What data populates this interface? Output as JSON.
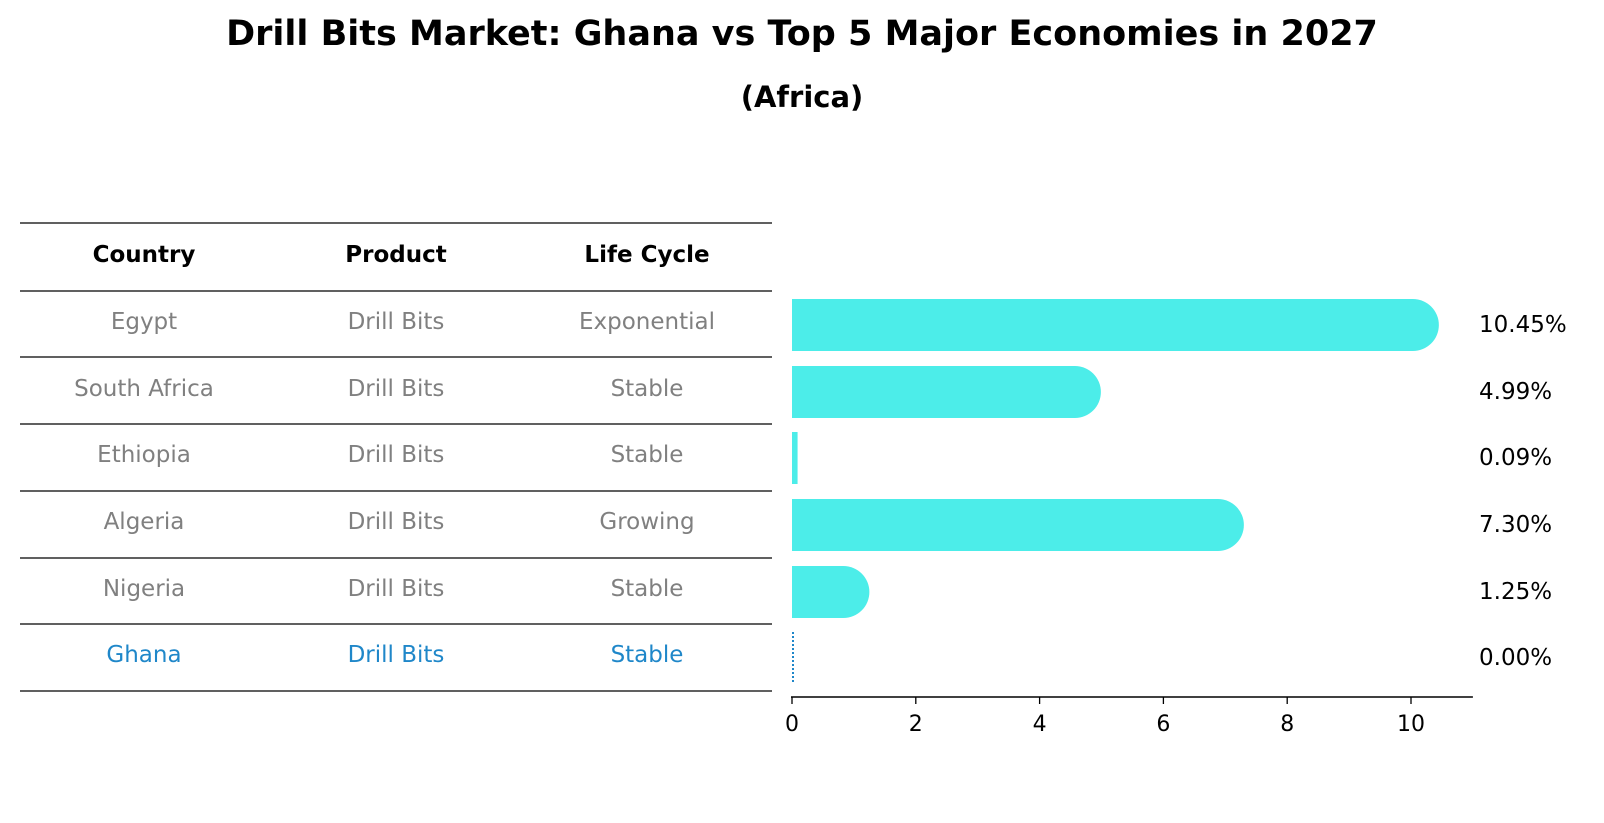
{
  "title": "Drill Bits Market: Ghana vs Top 5 Major Economies in 2027",
  "subtitle": "(Africa)",
  "table": {
    "headers": [
      "Country",
      "Product",
      "Life Cycle"
    ],
    "rows": [
      {
        "country": "Egypt",
        "product": "Drill Bits",
        "life_cycle": "Exponential",
        "highlight": false
      },
      {
        "country": "South Africa",
        "product": "Drill Bits",
        "life_cycle": "Stable",
        "highlight": false
      },
      {
        "country": "Ethiopia",
        "product": "Drill Bits",
        "life_cycle": "Stable",
        "highlight": false
      },
      {
        "country": "Algeria",
        "product": "Drill Bits",
        "life_cycle": "Growing",
        "highlight": false
      },
      {
        "country": "Nigeria",
        "product": "Drill Bits",
        "life_cycle": "Stable",
        "highlight": false
      },
      {
        "country": "Ghana",
        "product": "Drill Bits",
        "life_cycle": "Stable",
        "highlight": true
      }
    ]
  },
  "colors": {
    "bar": "#4cede9",
    "highlight_text": "#1f87c9",
    "normal_text": "#808080",
    "rule": "#000000"
  },
  "chart_data": {
    "type": "bar",
    "orientation": "horizontal",
    "categories": [
      "Egypt",
      "South Africa",
      "Ethiopia",
      "Algeria",
      "Nigeria",
      "Ghana"
    ],
    "values": [
      10.45,
      4.99,
      0.09,
      7.3,
      1.25,
      0.0
    ],
    "value_labels": [
      "10.45%",
      "4.99%",
      "0.09%",
      "7.30%",
      "1.25%",
      "0.00%"
    ],
    "xlim": [
      0,
      11
    ],
    "xticks": [
      0,
      2,
      4,
      6,
      8,
      10
    ],
    "grid": false
  }
}
